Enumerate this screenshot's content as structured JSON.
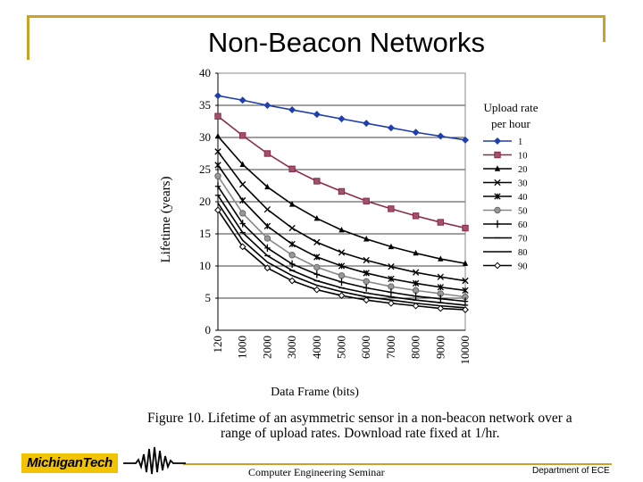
{
  "slide": {
    "title": "Non-Beacon Networks",
    "caption_line1": "Figure 10.  Lifetime of an asymmetric sensor in a non-beacon network over a",
    "caption_line2": "range of upload rates. Download rate fixed at 1/hr."
  },
  "footer": {
    "logo_text": "MichiganTech",
    "center_text": "Computer Engineering Seminar",
    "right_text": "Department of ECE"
  },
  "colors": {
    "accent": "#c9a227",
    "logo_bg": "#f2c300",
    "series1": "#1f3fae",
    "series2": "#8b2a4a"
  },
  "chart_data": {
    "type": "line",
    "title": "",
    "xlabel": "Data Frame (bits)",
    "ylabel": "Lifetime (years)",
    "ylim": [
      0,
      40
    ],
    "yticks": [
      0,
      5,
      10,
      15,
      20,
      25,
      30,
      35,
      40
    ],
    "categories": [
      "120",
      "1000",
      "2000",
      "3000",
      "4000",
      "5000",
      "6000",
      "7000",
      "8000",
      "9000",
      "10000"
    ],
    "legend_title": "Upload rate per hour",
    "legend_position": "right",
    "grid": true,
    "series": [
      {
        "name": "1",
        "marker": "diamond",
        "color": "#1f3fae",
        "values": [
          36.5,
          35.8,
          35.0,
          34.3,
          33.6,
          32.9,
          32.2,
          31.5,
          30.8,
          30.2,
          29.6
        ]
      },
      {
        "name": "10",
        "marker": "square",
        "color": "#8b2a4a",
        "values": [
          33.3,
          30.3,
          27.5,
          25.1,
          23.2,
          21.6,
          20.1,
          18.9,
          17.8,
          16.8,
          15.9
        ]
      },
      {
        "name": "20",
        "marker": "triangle",
        "color": "#000000",
        "values": [
          30.2,
          25.8,
          22.3,
          19.6,
          17.4,
          15.6,
          14.2,
          13.0,
          12.0,
          11.1,
          10.4
        ]
      },
      {
        "name": "30",
        "marker": "x",
        "color": "#000000",
        "values": [
          27.8,
          22.7,
          18.8,
          15.9,
          13.7,
          12.1,
          10.9,
          9.9,
          9.0,
          8.3,
          7.7
        ]
      },
      {
        "name": "40",
        "marker": "asterisk",
        "color": "#000000",
        "values": [
          25.7,
          20.2,
          16.2,
          13.4,
          11.4,
          10.0,
          8.9,
          8.0,
          7.3,
          6.7,
          6.2
        ]
      },
      {
        "name": "50",
        "marker": "circle",
        "color": "#888888",
        "values": [
          24.0,
          18.2,
          14.3,
          11.7,
          9.8,
          8.5,
          7.6,
          6.8,
          6.2,
          5.7,
          5.2
        ]
      },
      {
        "name": "60",
        "marker": "plus",
        "color": "#000000",
        "values": [
          22.4,
          16.6,
          12.8,
          10.3,
          8.7,
          7.5,
          6.6,
          5.9,
          5.3,
          4.9,
          4.5
        ]
      },
      {
        "name": "70",
        "marker": "dash",
        "color": "#000000",
        "values": [
          21.0,
          15.2,
          11.6,
          9.3,
          7.7,
          6.6,
          5.8,
          5.2,
          4.7,
          4.3,
          3.9
        ]
      },
      {
        "name": "80",
        "marker": "line",
        "color": "#000000",
        "values": [
          19.8,
          14.0,
          10.6,
          8.5,
          7.0,
          6.0,
          5.2,
          4.7,
          4.2,
          3.8,
          3.5
        ]
      },
      {
        "name": "90",
        "marker": "open-diamond",
        "color": "#000000",
        "values": [
          18.7,
          13.0,
          9.7,
          7.7,
          6.3,
          5.4,
          4.7,
          4.2,
          3.8,
          3.4,
          3.2
        ]
      }
    ]
  }
}
